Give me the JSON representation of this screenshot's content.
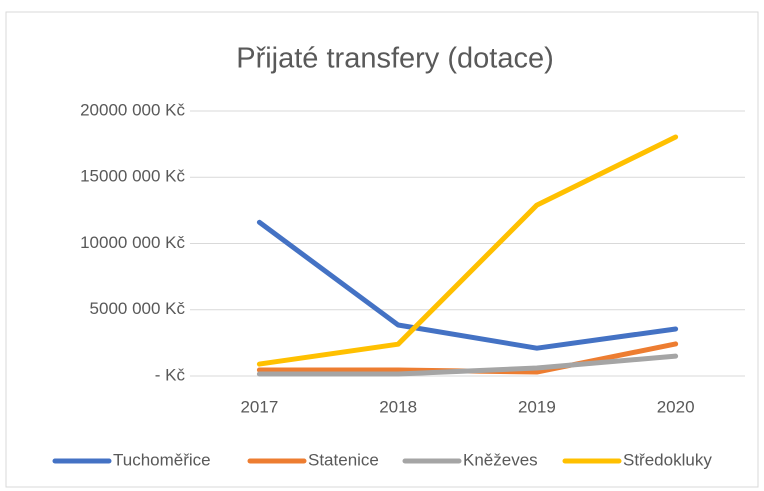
{
  "chart_data": {
    "type": "line",
    "title": "Přijaté transfery (dotace)",
    "categories": [
      "2017",
      "2018",
      "2019",
      "2020"
    ],
    "series": [
      {
        "name": "Tuchoměřice",
        "color": "#4472c4",
        "values": [
          11600000,
          3850000,
          2100000,
          3550000
        ]
      },
      {
        "name": "Statenice",
        "color": "#ed7d31",
        "values": [
          450000,
          450000,
          300000,
          2420000
        ]
      },
      {
        "name": "Kněževes",
        "color": "#a5a5a5",
        "values": [
          150000,
          150000,
          600000,
          1500000
        ]
      },
      {
        "name": "Středokluky",
        "color": "#ffc000",
        "values": [
          900000,
          2400000,
          12900000,
          18040000
        ]
      }
    ],
    "ylim": [
      0,
      20000000
    ],
    "yticks": [
      {
        "value": 0,
        "label": "-   Kč"
      },
      {
        "value": 5000000,
        "label": "5000 000 Kč"
      },
      {
        "value": 10000000,
        "label": "10000 000 Kč"
      },
      {
        "value": 15000000,
        "label": "15000 000 Kč"
      },
      {
        "value": 20000000,
        "label": "20000 000 Kč"
      }
    ],
    "grid": true,
    "legend": "bottom"
  }
}
